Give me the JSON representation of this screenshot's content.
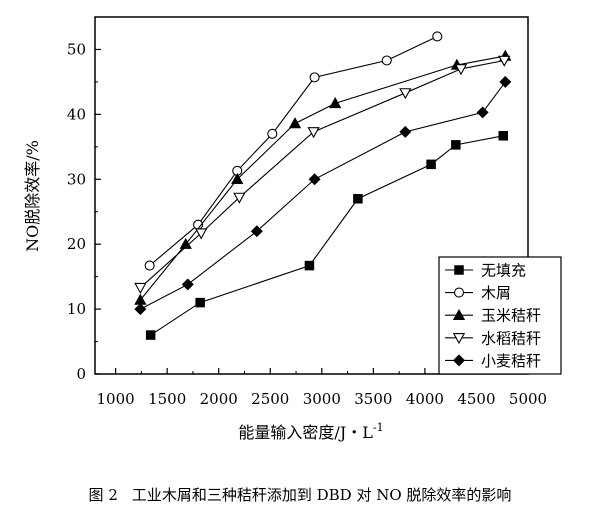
{
  "chart_data": {
    "type": "line",
    "xlabel": "能量输入密度/J・L",
    "xlabel_sup": "-1",
    "ylabel": "NO脱除效率/%",
    "xlim": [
      800,
      5000
    ],
    "ylim": [
      0,
      55
    ],
    "x_ticks": [
      "1000",
      "1500",
      "2000",
      "2500",
      "3000",
      "3500",
      "4000",
      "4500",
      "5000"
    ],
    "y_ticks": [
      "0",
      "10",
      "20",
      "30",
      "40",
      "50"
    ],
    "grid": false,
    "legend_position": "bottom-right",
    "series": [
      {
        "name": "无填充",
        "marker": "square-filled",
        "x": [
          1340,
          1820,
          2880,
          3350,
          4060,
          4300,
          4760
        ],
        "y": [
          6,
          11,
          16.7,
          27,
          32.3,
          35.3,
          36.7
        ]
      },
      {
        "name": "木屑",
        "marker": "circle-open",
        "x": [
          1330,
          1800,
          2180,
          2520,
          2930,
          3630,
          4120
        ],
        "y": [
          16.7,
          23,
          31.3,
          37,
          45.7,
          48.3,
          52
        ]
      },
      {
        "name": "玉米秸秆",
        "marker": "triangle-up-filled",
        "x": [
          1240,
          1680,
          2180,
          2740,
          3130,
          4310,
          4780
        ],
        "y": [
          11.4,
          20,
          30,
          38.6,
          41.7,
          47.6,
          49
        ]
      },
      {
        "name": "水稻秸秆",
        "marker": "triangle-down-open",
        "x": [
          1240,
          1830,
          2200,
          2920,
          3810,
          4350,
          4770
        ],
        "y": [
          13.3,
          21.7,
          27.2,
          37.3,
          43.3,
          47,
          48.3
        ]
      },
      {
        "name": "小麦秸秆",
        "marker": "diamond-filled",
        "x": [
          1240,
          1700,
          2370,
          2930,
          3810,
          4560,
          4780
        ],
        "y": [
          10,
          13.8,
          22,
          30,
          37.3,
          40.3,
          45
        ]
      }
    ]
  },
  "caption": {
    "number": "图 2",
    "text": "工业木屑和三种秸秆添加到 DBD 对 NO 脱除效率的影响"
  }
}
